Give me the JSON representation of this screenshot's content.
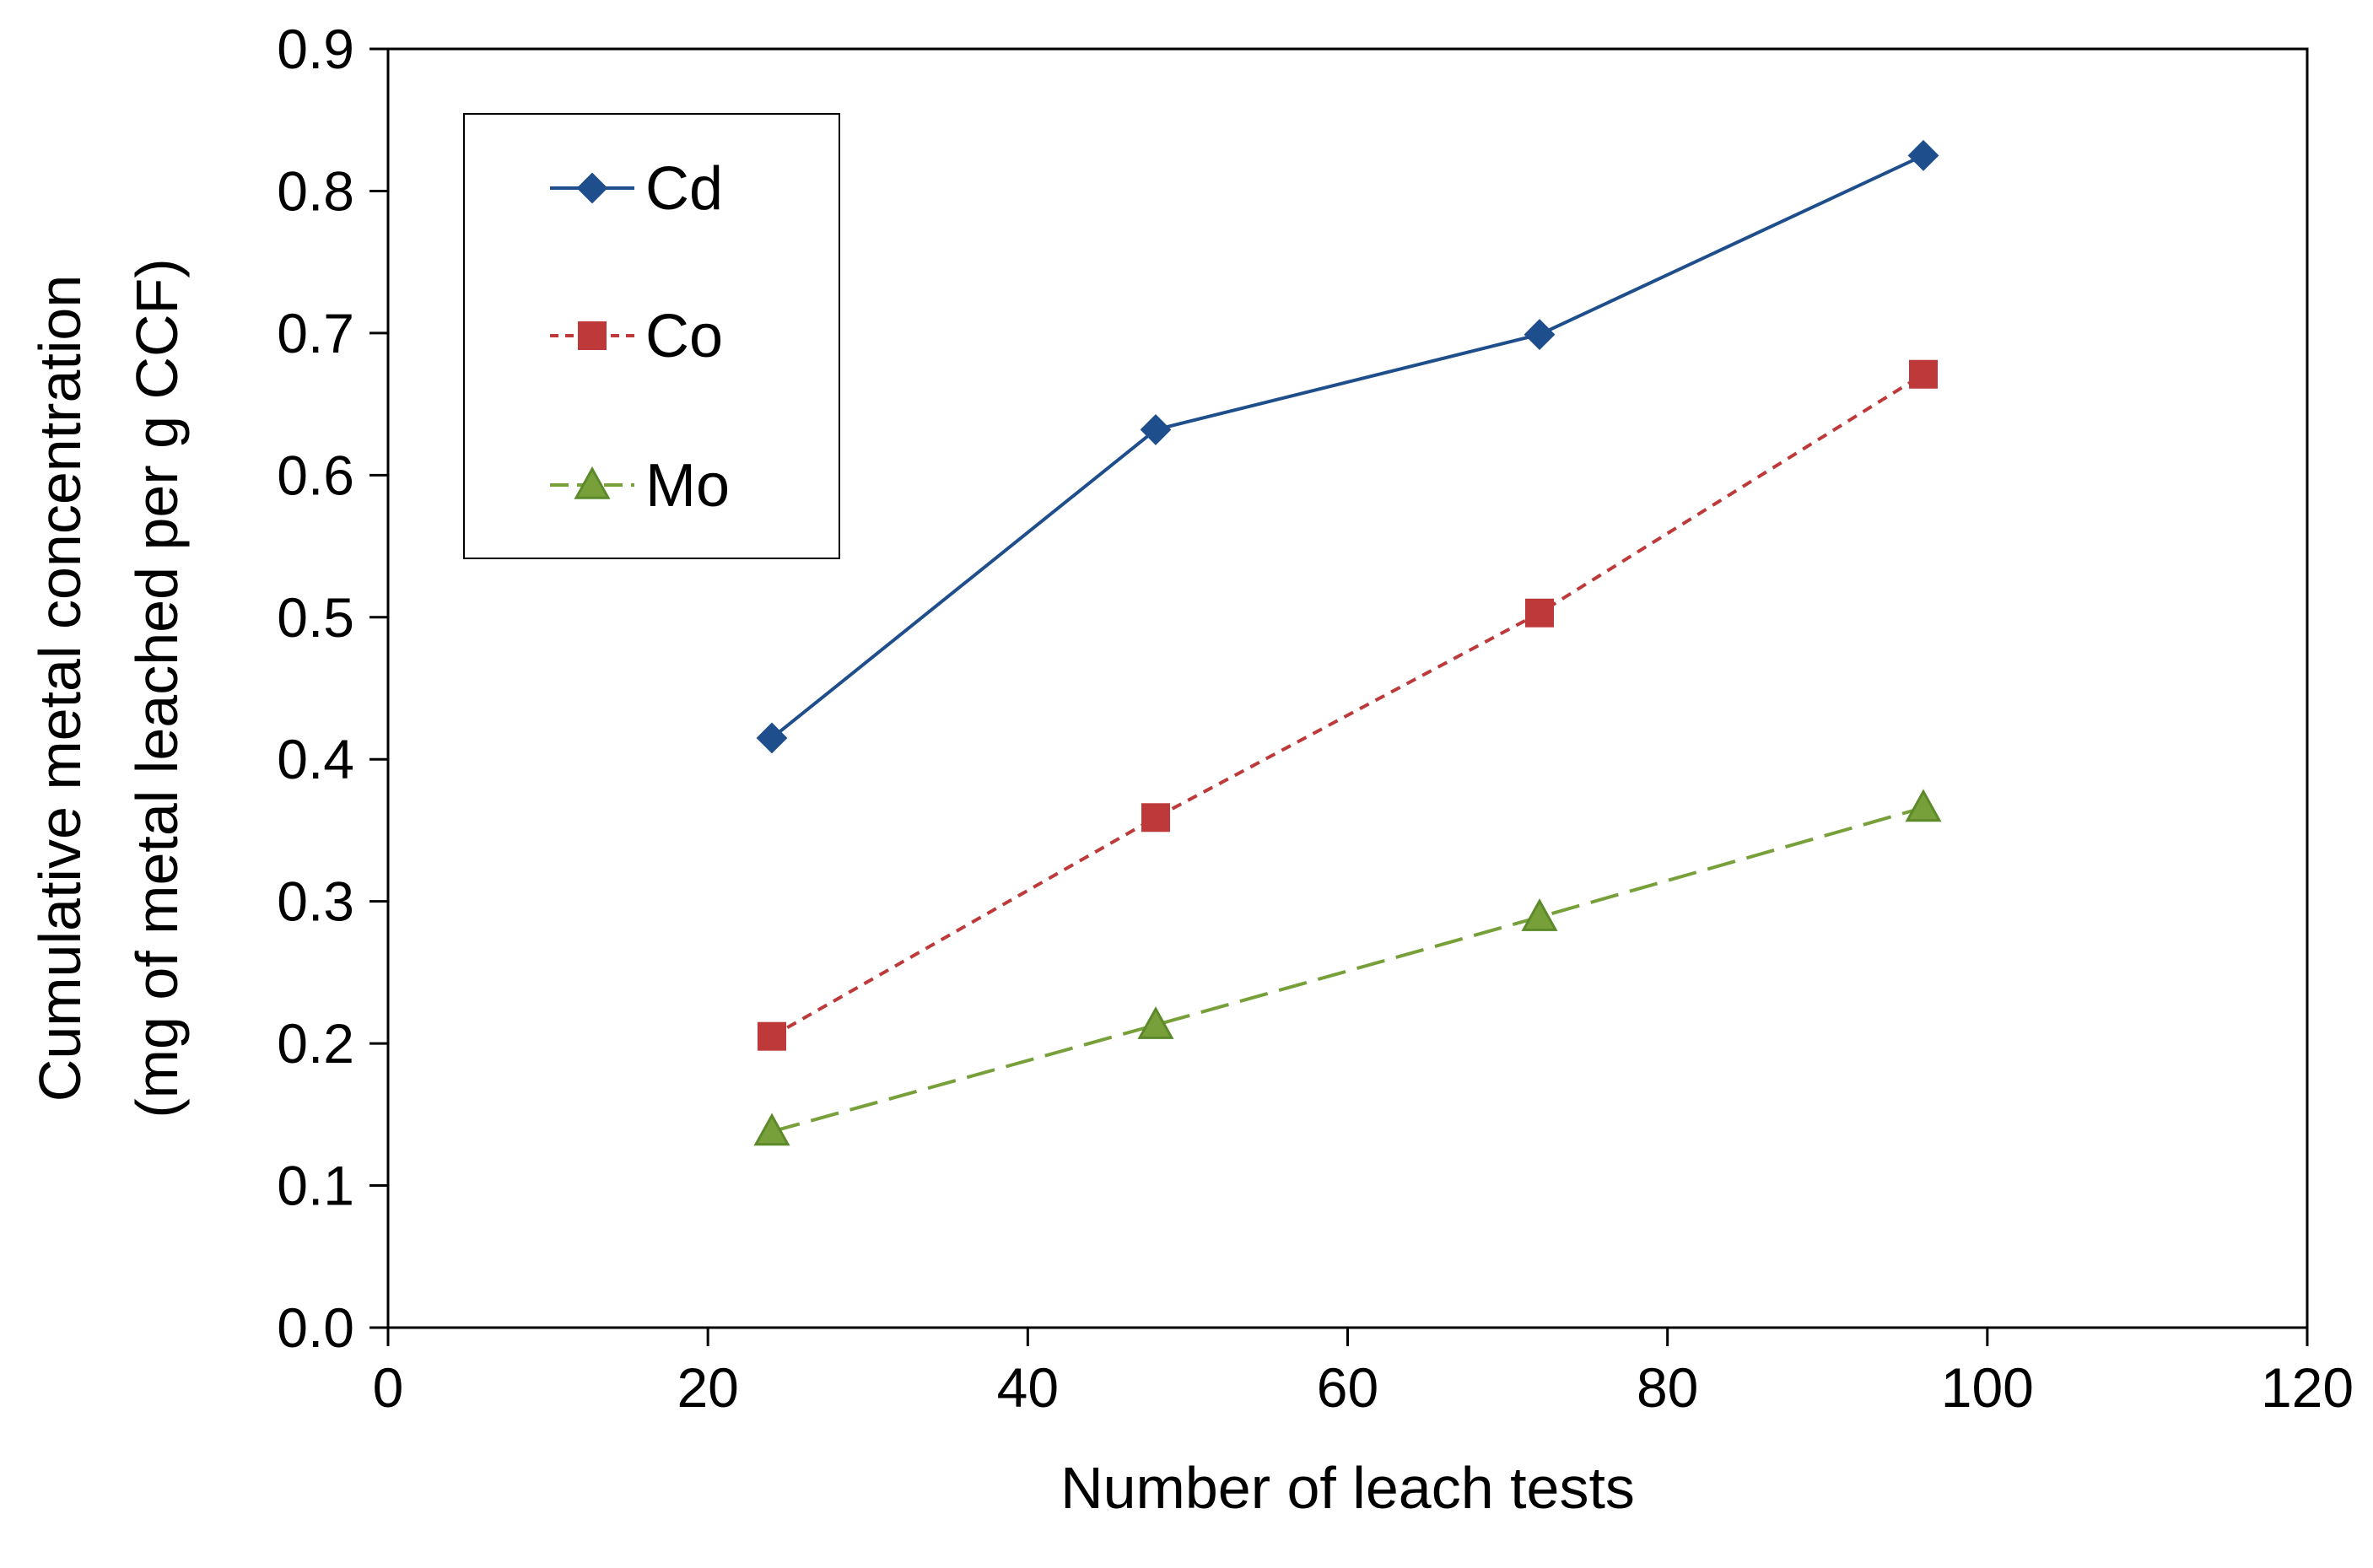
{
  "chart_data": {
    "type": "line",
    "title": "",
    "xlabel": "Number of leach tests",
    "ylabel": "Cumulative metal concentration",
    "ylabel_line2": "(mg of metal leached per g CCF)",
    "xlim": [
      0,
      120
    ],
    "ylim": [
      0,
      0.9
    ],
    "xticks": [
      0,
      20,
      40,
      60,
      80,
      100,
      120
    ],
    "xtick_labels": [
      "0",
      "20",
      "40",
      "60",
      "80",
      "100",
      "120"
    ],
    "yticks": [
      0,
      0.1,
      0.2,
      0.3,
      0.4,
      0.5,
      0.6,
      0.7,
      0.8,
      0.9
    ],
    "ytick_labels": [
      "0.0",
      "0.1",
      "0.2",
      "0.3",
      "0.4",
      "0.5",
      "0.6",
      "0.7",
      "0.8",
      "0.9"
    ],
    "grid": false,
    "legend_position": "top-left",
    "x": [
      24,
      48,
      72,
      96
    ],
    "series": [
      {
        "name": "Cd",
        "values": [
          0.415,
          0.632,
          0.699,
          0.825
        ],
        "color": "#1f4e8c",
        "marker": "diamond",
        "line_style": "solid"
      },
      {
        "name": "Co",
        "values": [
          0.205,
          0.359,
          0.503,
          0.671
        ],
        "color": "#be3a3a",
        "marker": "square",
        "line_style": "dotted-dash"
      },
      {
        "name": "Mo",
        "values": [
          0.138,
          0.213,
          0.289,
          0.366
        ],
        "color": "#77a03a",
        "marker": "triangle",
        "line_style": "dashed"
      }
    ]
  }
}
